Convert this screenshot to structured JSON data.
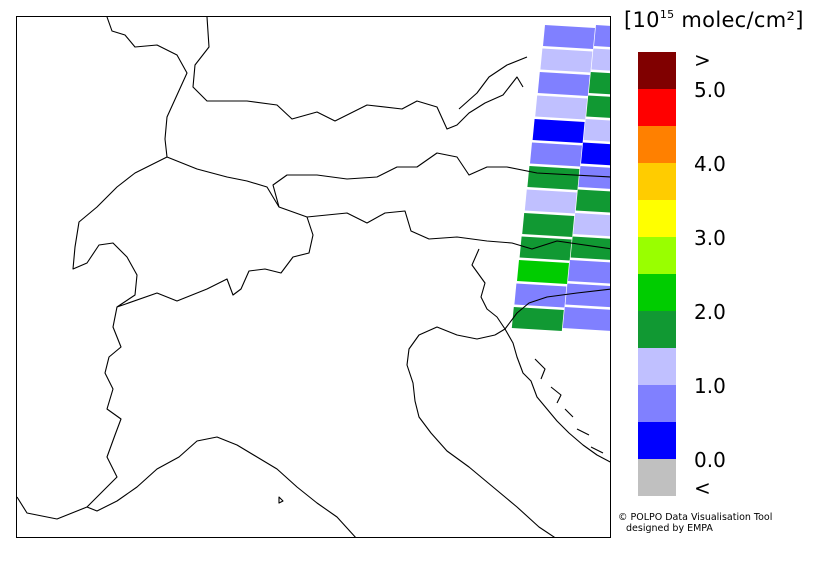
{
  "map": {
    "border_color": "#000000",
    "swath_rows": [
      {
        "cells": [
          "#8080ff",
          "#8080ff"
        ]
      },
      {
        "cells": [
          "#c0c0ff",
          "#c0c0ff"
        ]
      },
      {
        "cells": [
          "#8080ff",
          "#119933"
        ]
      },
      {
        "cells": [
          "#c0c0ff",
          "#119933"
        ]
      },
      {
        "cells": [
          "#0000ff",
          "#c0c0ff"
        ]
      },
      {
        "cells": [
          "#8080ff",
          "#0000ff"
        ]
      },
      {
        "cells": [
          "#119933",
          "#8080ff"
        ]
      },
      {
        "cells": [
          "#c0c0ff",
          "#119933"
        ]
      },
      {
        "cells": [
          "#119933",
          "#c0c0ff"
        ]
      },
      {
        "cells": [
          "#119933",
          "#119933"
        ]
      },
      {
        "cells": [
          "#00cc00",
          "#8080ff"
        ]
      },
      {
        "cells": [
          "#8080ff",
          "#8080ff"
        ]
      },
      {
        "cells": [
          "#119933",
          "#8080ff"
        ]
      }
    ]
  },
  "legend": {
    "unit_prefix": "[10",
    "unit_exponent": "15",
    "unit_suffix": " molec/cm²]",
    "colorbar": [
      {
        "color": "#800000"
      },
      {
        "color": "#ff0000"
      },
      {
        "color": "#ff8000"
      },
      {
        "color": "#ffcc00"
      },
      {
        "color": "#ffff00"
      },
      {
        "color": "#99ff00"
      },
      {
        "color": "#00cc00"
      },
      {
        "color": "#119933"
      },
      {
        "color": "#c0c0ff"
      },
      {
        "color": "#8080ff"
      },
      {
        "color": "#0000ff"
      },
      {
        "color": "#c0c0c0"
      }
    ],
    "ticks": [
      ">",
      "5.0",
      "4.0",
      "3.0",
      "2.0",
      "1.0",
      "0.0",
      "<"
    ]
  },
  "credit": {
    "line1": "© POLPO Data Visualisation Tool",
    "line2": "designed by EMPA"
  }
}
